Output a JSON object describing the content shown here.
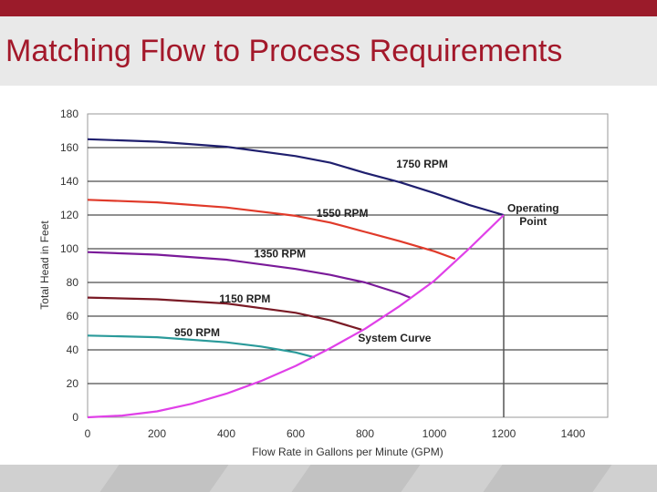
{
  "slide": {
    "title": "Matching Flow to Process Requirements"
  },
  "colors": {
    "title": "#a3182a",
    "top_bar": "#9b1b2a",
    "title_band": "#e9e9e9",
    "footer": "#d0d0d0"
  },
  "chart_data": {
    "type": "line",
    "title": "",
    "xlabel": "Flow Rate in Gallons per Minute (GPM)",
    "ylabel": "Total Head in Feet",
    "xlim": [
      0,
      1500
    ],
    "ylim": [
      0,
      180
    ],
    "xticks": [
      0,
      200,
      400,
      600,
      800,
      1000,
      1200,
      1400
    ],
    "yticks": [
      0,
      20,
      40,
      60,
      80,
      100,
      120,
      140,
      160,
      180
    ],
    "grid": "horizontal",
    "series": [
      {
        "name": "1750 RPM",
        "color": "#1f1f6e",
        "x": [
          0,
          200,
          400,
          600,
          700,
          800,
          900,
          1000,
          1100,
          1200
        ],
        "y": [
          165,
          163.5,
          160.5,
          155,
          151,
          145,
          139.5,
          133,
          126,
          120
        ]
      },
      {
        "name": "1550 RPM",
        "color": "#e03a2a",
        "x": [
          0,
          200,
          400,
          600,
          700,
          800,
          900,
          1000,
          1060
        ],
        "y": [
          129,
          127.5,
          124.5,
          119.5,
          115.5,
          110,
          104.5,
          98.5,
          94
        ]
      },
      {
        "name": "1350 RPM",
        "color": "#7a1a99",
        "x": [
          0,
          200,
          400,
          600,
          700,
          800,
          900,
          930
        ],
        "y": [
          98,
          96.5,
          93.5,
          88,
          84.5,
          80,
          73.5,
          71
        ]
      },
      {
        "name": "1150 RPM",
        "color": "#7a1a25",
        "x": [
          0,
          200,
          400,
          600,
          700,
          790
        ],
        "y": [
          71,
          70,
          67.5,
          62,
          57.5,
          52
        ]
      },
      {
        "name": "950 RPM",
        "color": "#2a9a9a",
        "x": [
          0,
          200,
          400,
          500,
          600,
          655
        ],
        "y": [
          48.5,
          47.5,
          44.5,
          42,
          38.5,
          35.5
        ]
      },
      {
        "name": "System Curve",
        "color": "#e040e8",
        "x": [
          0,
          100,
          200,
          300,
          400,
          500,
          600,
          700,
          800,
          900,
          1000,
          1100,
          1200
        ],
        "y": [
          0,
          1,
          3.5,
          8,
          14,
          21.5,
          30.5,
          41,
          52.5,
          66,
          81,
          100,
          120
        ]
      }
    ],
    "annotations": [
      {
        "text": "1750 RPM",
        "x": 890,
        "y": 148
      },
      {
        "text": "1550 RPM",
        "x": 660,
        "y": 119
      },
      {
        "text": "1350 RPM",
        "x": 480,
        "y": 95
      },
      {
        "text": "1150 RPM",
        "x": 380,
        "y": 68
      },
      {
        "text": "950 RPM",
        "x": 250,
        "y": 48
      },
      {
        "text": "System Curve",
        "x": 780,
        "y": 45
      },
      {
        "text": "Operating",
        "x": 1285,
        "y": 122
      },
      {
        "text": "Point",
        "x": 1285,
        "y": 114
      }
    ],
    "operating_point": {
      "x": 1200,
      "y": 120
    }
  }
}
